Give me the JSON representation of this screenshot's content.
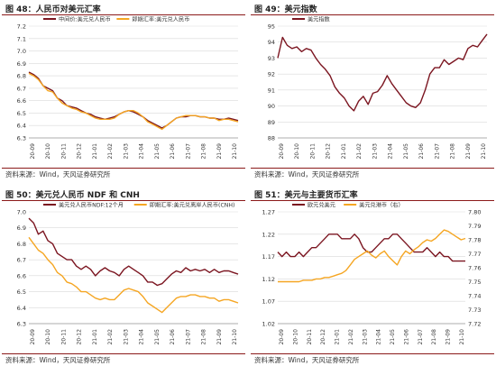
{
  "colors": {
    "maroon": "#7b1520",
    "orange": "#f5a623",
    "rule": "#8b1a1a",
    "grid": "#d9d9d9"
  },
  "panels": [
    {
      "title": "图 48：人民币对美元汇率",
      "source": "资料来源：Wind，天风证券研究所"
    },
    {
      "title": "图 49：美元指数",
      "source": "资料来源：Wind，天风证券研究所"
    },
    {
      "title": "图 50：美元兑人民币 NDF 和 CNH",
      "source": "资料来源：Wind，天风证券研究所"
    },
    {
      "title": "图 51：美元与主要货币汇率",
      "source": "资料来源：Wind，天风证券研究所"
    }
  ],
  "chart_data": [
    {
      "type": "line",
      "x_labels": [
        "20-09",
        "20-10",
        "20-11",
        "20-12",
        "21-01",
        "21-02",
        "21-03",
        "21-04",
        "21-05",
        "21-06",
        "21-07",
        "21-08",
        "21-09",
        "21-10"
      ],
      "ylim": [
        6.3,
        7.2
      ],
      "yticks": [
        6.3,
        6.4,
        6.5,
        6.6,
        6.7,
        6.8,
        6.9,
        7.0,
        7.1,
        7.2
      ],
      "legend": "top",
      "series": [
        {
          "name": "中间价:美元兑人民币",
          "color": "#7b1520",
          "values": [
            6.83,
            6.81,
            6.78,
            6.72,
            6.7,
            6.68,
            6.62,
            6.6,
            6.56,
            6.55,
            6.54,
            6.52,
            6.5,
            6.49,
            6.47,
            6.46,
            6.45,
            6.46,
            6.47,
            6.49,
            6.51,
            6.52,
            6.51,
            6.49,
            6.47,
            6.44,
            6.42,
            6.4,
            6.38,
            6.4,
            6.43,
            6.46,
            6.47,
            6.47,
            6.48,
            6.48,
            6.47,
            6.47,
            6.46,
            6.46,
            6.45,
            6.45,
            6.46,
            6.45,
            6.44
          ]
        },
        {
          "name": "即期汇率:美元兑人民币",
          "color": "#f5a623",
          "values": [
            6.82,
            6.8,
            6.77,
            6.72,
            6.68,
            6.67,
            6.62,
            6.58,
            6.56,
            6.54,
            6.53,
            6.51,
            6.5,
            6.48,
            6.46,
            6.45,
            6.45,
            6.45,
            6.46,
            6.49,
            6.51,
            6.52,
            6.52,
            6.5,
            6.47,
            6.43,
            6.41,
            6.39,
            6.37,
            6.4,
            6.43,
            6.46,
            6.47,
            6.48,
            6.48,
            6.48,
            6.47,
            6.47,
            6.46,
            6.46,
            6.44,
            6.45,
            6.45,
            6.44,
            6.43
          ]
        }
      ]
    },
    {
      "type": "line",
      "x_labels": [
        "20-09",
        "20-10",
        "20-11",
        "20-12",
        "21-01",
        "21-02",
        "21-03",
        "21-04",
        "21-05",
        "21-06",
        "21-07",
        "21-08",
        "21-09",
        "21-10"
      ],
      "ylim": [
        88,
        95
      ],
      "yticks": [
        88,
        89,
        90,
        91,
        92,
        93,
        94,
        95
      ],
      "legend": "top",
      "series": [
        {
          "name": "美元指数",
          "color": "#7b1520",
          "values": [
            93.0,
            94.3,
            93.8,
            93.6,
            93.7,
            93.4,
            93.6,
            93.5,
            93.0,
            92.6,
            92.3,
            91.9,
            91.2,
            90.8,
            90.5,
            90.0,
            89.7,
            90.3,
            90.6,
            90.1,
            90.8,
            90.9,
            91.3,
            91.9,
            91.4,
            91.0,
            90.6,
            90.2,
            90.0,
            89.9,
            90.2,
            91.0,
            92.0,
            92.4,
            92.4,
            92.9,
            92.6,
            92.8,
            93.0,
            92.9,
            93.6,
            93.8,
            93.7,
            94.1,
            94.5
          ]
        }
      ]
    },
    {
      "type": "line",
      "x_labels": [
        "20-09",
        "20-10",
        "20-11",
        "20-12",
        "21-01",
        "21-02",
        "21-03",
        "21-04",
        "21-05",
        "21-06",
        "21-07",
        "21-08",
        "21-09",
        "21-10"
      ],
      "ylim": [
        6.3,
        7.0
      ],
      "yticks": [
        6.3,
        6.4,
        6.5,
        6.6,
        6.7,
        6.8,
        6.9,
        7.0
      ],
      "legend": "top",
      "series": [
        {
          "name": "美元兑人民币NDF:12个月",
          "color": "#7b1520",
          "values": [
            6.96,
            6.93,
            6.86,
            6.88,
            6.82,
            6.8,
            6.74,
            6.72,
            6.7,
            6.7,
            6.66,
            6.64,
            6.66,
            6.64,
            6.6,
            6.63,
            6.65,
            6.63,
            6.62,
            6.6,
            6.64,
            6.66,
            6.64,
            6.62,
            6.6,
            6.56,
            6.56,
            6.54,
            6.55,
            6.58,
            6.61,
            6.63,
            6.62,
            6.65,
            6.63,
            6.64,
            6.63,
            6.64,
            6.62,
            6.64,
            6.62,
            6.63,
            6.63,
            6.62,
            6.61
          ]
        },
        {
          "name": "即期汇率:美元兑离岸人民币(CNH)",
          "color": "#f5a623",
          "values": [
            6.84,
            6.8,
            6.76,
            6.74,
            6.7,
            6.67,
            6.62,
            6.6,
            6.56,
            6.55,
            6.53,
            6.5,
            6.5,
            6.48,
            6.46,
            6.45,
            6.46,
            6.45,
            6.45,
            6.48,
            6.51,
            6.52,
            6.51,
            6.5,
            6.47,
            6.43,
            6.41,
            6.39,
            6.37,
            6.4,
            6.43,
            6.46,
            6.47,
            6.47,
            6.48,
            6.48,
            6.47,
            6.47,
            6.46,
            6.46,
            6.44,
            6.45,
            6.45,
            6.44,
            6.43
          ]
        }
      ]
    },
    {
      "type": "line",
      "x_labels": [
        "20-09",
        "20-10",
        "20-11",
        "20-12",
        "21-01",
        "21-02",
        "21-03",
        "21-04",
        "21-05",
        "21-06",
        "21-07",
        "21-08",
        "21-09",
        "21-10"
      ],
      "ylim": [
        1.02,
        1.27
      ],
      "yticks": [
        1.02,
        1.07,
        1.12,
        1.17,
        1.22,
        1.27
      ],
      "y2lim": [
        7.72,
        7.8
      ],
      "y2ticks": [
        7.72,
        7.73,
        7.74,
        7.75,
        7.76,
        7.77,
        7.78,
        7.79,
        7.8
      ],
      "legend": "top",
      "series": [
        {
          "name": "欧元兑美元",
          "axis": "left",
          "color": "#7b1520",
          "values": [
            1.18,
            1.17,
            1.18,
            1.17,
            1.17,
            1.18,
            1.17,
            1.18,
            1.19,
            1.19,
            1.2,
            1.21,
            1.22,
            1.22,
            1.22,
            1.21,
            1.21,
            1.21,
            1.22,
            1.21,
            1.19,
            1.18,
            1.18,
            1.19,
            1.2,
            1.21,
            1.21,
            1.22,
            1.22,
            1.21,
            1.2,
            1.19,
            1.18,
            1.18,
            1.18,
            1.19,
            1.18,
            1.17,
            1.18,
            1.17,
            1.17,
            1.16,
            1.16,
            1.16,
            1.16
          ]
        },
        {
          "name": "美元兑港币（右）",
          "axis": "right",
          "color": "#f5a623",
          "values": [
            7.75,
            7.75,
            7.75,
            7.75,
            7.75,
            7.75,
            7.751,
            7.751,
            7.751,
            7.752,
            7.752,
            7.753,
            7.753,
            7.754,
            7.755,
            7.756,
            7.758,
            7.762,
            7.766,
            7.768,
            7.77,
            7.772,
            7.769,
            7.767,
            7.77,
            7.772,
            7.768,
            7.765,
            7.762,
            7.768,
            7.772,
            7.77,
            7.773,
            7.775,
            7.778,
            7.78,
            7.779,
            7.781,
            7.784,
            7.787,
            7.786,
            7.784,
            7.782,
            7.78,
            7.781
          ]
        }
      ]
    }
  ]
}
